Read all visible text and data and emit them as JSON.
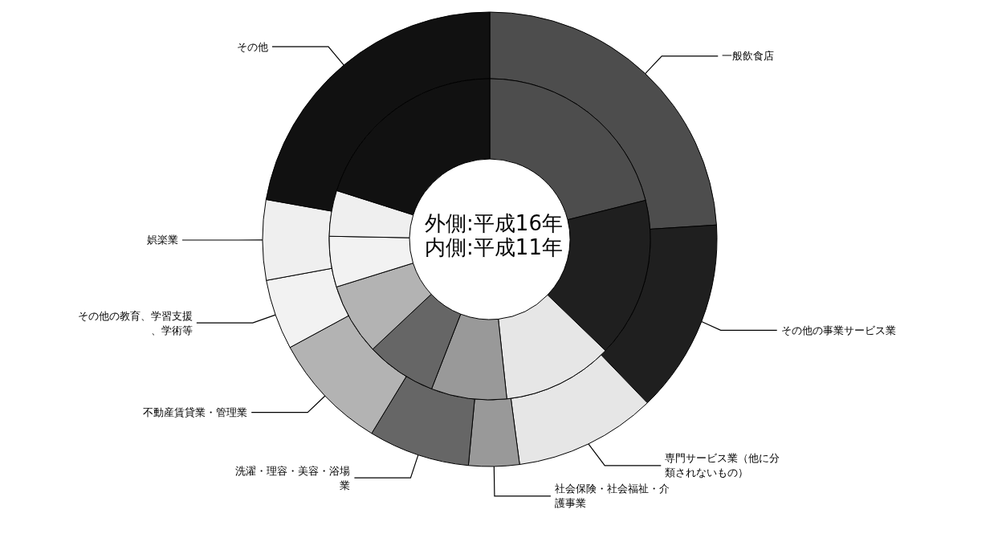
{
  "chart_data": {
    "type": "donut",
    "title": "外側:平成16年",
    "subtitle": "内側:平成11年",
    "categories": [
      "一般飲食店",
      "その他の事業サービス業",
      "専門サービス業（他に分類されないもの）",
      "社会保険・社会福祉・介護事業",
      "洗濯・理容・美容・浴場業",
      "不動産賃貸業・管理業",
      "その他の教育、学習支援、学術等",
      "娯楽業",
      "その他"
    ],
    "colors": [
      "#4d4d4d",
      "#1f1f1f",
      "#e6e6e6",
      "#999999",
      "#666666",
      "#b3b3b3",
      "#f2f2f2",
      "#efefef",
      "#111111"
    ],
    "series": [
      {
        "values": [
          24.0,
          13.8,
          10.1,
          3.6,
          7.2,
          8.4,
          5.0,
          5.7,
          22.2
        ]
      },
      {
        "values": [
          21.1,
          16.1,
          11.1,
          7.6,
          7.1,
          7.2,
          5.1,
          4.6,
          20.1
        ]
      }
    ],
    "legend": false
  }
}
